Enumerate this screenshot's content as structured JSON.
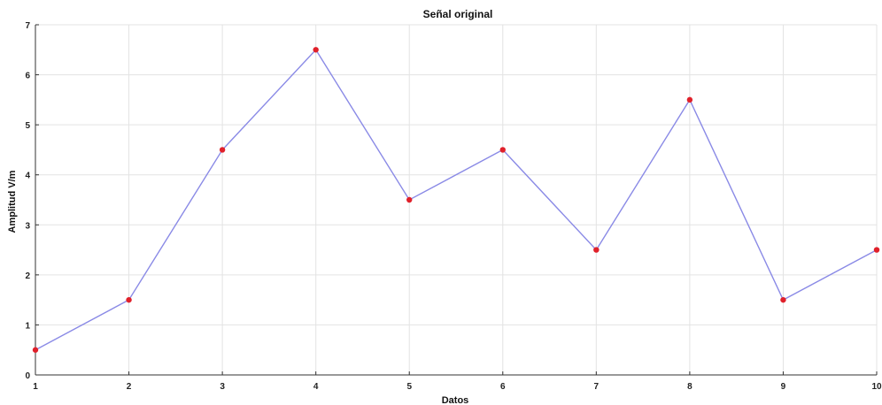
{
  "chart_data": {
    "type": "line",
    "title": "Señal original",
    "xlabel": "Datos",
    "ylabel": "Amplitud V/m",
    "x": [
      1,
      2,
      3,
      4,
      5,
      6,
      7,
      8,
      9,
      10
    ],
    "series": [
      {
        "values": [
          0.5,
          1.5,
          4.5,
          6.5,
          3.5,
          4.5,
          2.5,
          5.5,
          1.5,
          2.5
        ]
      }
    ],
    "xlim": [
      1,
      10
    ],
    "ylim": [
      0,
      7
    ],
    "xticks": [
      "1",
      "2",
      "3",
      "4",
      "5",
      "6",
      "7",
      "8",
      "9",
      "10"
    ],
    "yticks": [
      "0",
      "1",
      "2",
      "3",
      "4",
      "5",
      "6",
      "7"
    ],
    "grid": true,
    "colors": {
      "line": "#8a8ae6",
      "marker": "#e0202a",
      "grid": "#e3e3e3",
      "axis": "#333333"
    }
  }
}
